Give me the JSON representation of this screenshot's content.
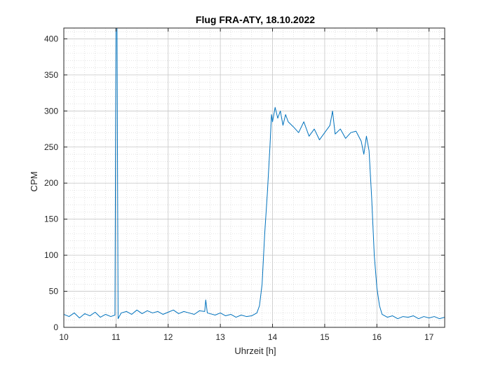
{
  "chart_data": {
    "type": "line",
    "title": "Flug FRA-ATY, 18.10.2022",
    "xlabel": "Uhrzeit [h]",
    "ylabel": "CPM",
    "xlim": [
      10,
      17.3
    ],
    "ylim": [
      0,
      415
    ],
    "xticks": [
      10,
      11,
      12,
      13,
      14,
      15,
      16,
      17
    ],
    "yticks": [
      0,
      50,
      100,
      150,
      200,
      250,
      300,
      350,
      400
    ],
    "grid": "major and minor",
    "series": [
      {
        "color": "#0072BD",
        "points": [
          [
            10.0,
            18
          ],
          [
            10.1,
            15
          ],
          [
            10.2,
            20
          ],
          [
            10.3,
            13
          ],
          [
            10.4,
            19
          ],
          [
            10.5,
            16
          ],
          [
            10.6,
            21
          ],
          [
            10.7,
            14
          ],
          [
            10.8,
            18
          ],
          [
            10.9,
            15
          ],
          [
            10.98,
            17
          ],
          [
            11.0,
            420
          ],
          [
            11.02,
            420
          ],
          [
            11.04,
            12
          ],
          [
            11.1,
            20
          ],
          [
            11.2,
            22
          ],
          [
            11.3,
            18
          ],
          [
            11.4,
            24
          ],
          [
            11.5,
            19
          ],
          [
            11.6,
            23
          ],
          [
            11.7,
            20
          ],
          [
            11.8,
            22
          ],
          [
            11.9,
            18
          ],
          [
            12.0,
            21
          ],
          [
            12.1,
            24
          ],
          [
            12.2,
            19
          ],
          [
            12.3,
            22
          ],
          [
            12.4,
            20
          ],
          [
            12.5,
            18
          ],
          [
            12.6,
            23
          ],
          [
            12.7,
            22
          ],
          [
            12.72,
            38
          ],
          [
            12.75,
            20
          ],
          [
            12.8,
            19
          ],
          [
            12.9,
            17
          ],
          [
            13.0,
            20
          ],
          [
            13.1,
            16
          ],
          [
            13.2,
            18
          ],
          [
            13.3,
            14
          ],
          [
            13.4,
            17
          ],
          [
            13.5,
            15
          ],
          [
            13.6,
            16
          ],
          [
            13.7,
            20
          ],
          [
            13.75,
            30
          ],
          [
            13.8,
            60
          ],
          [
            13.85,
            130
          ],
          [
            13.9,
            185
          ],
          [
            13.95,
            250
          ],
          [
            13.98,
            295
          ],
          [
            14.0,
            285
          ],
          [
            14.05,
            305
          ],
          [
            14.1,
            290
          ],
          [
            14.15,
            300
          ],
          [
            14.2,
            280
          ],
          [
            14.25,
            295
          ],
          [
            14.3,
            285
          ],
          [
            14.4,
            278
          ],
          [
            14.5,
            270
          ],
          [
            14.6,
            285
          ],
          [
            14.7,
            265
          ],
          [
            14.8,
            275
          ],
          [
            14.9,
            260
          ],
          [
            15.0,
            270
          ],
          [
            15.1,
            280
          ],
          [
            15.15,
            300
          ],
          [
            15.2,
            268
          ],
          [
            15.3,
            275
          ],
          [
            15.4,
            262
          ],
          [
            15.5,
            270
          ],
          [
            15.6,
            272
          ],
          [
            15.7,
            258
          ],
          [
            15.75,
            240
          ],
          [
            15.8,
            265
          ],
          [
            15.85,
            245
          ],
          [
            15.9,
            180
          ],
          [
            15.95,
            100
          ],
          [
            16.0,
            55
          ],
          [
            16.05,
            30
          ],
          [
            16.1,
            18
          ],
          [
            16.2,
            14
          ],
          [
            16.3,
            16
          ],
          [
            16.4,
            12
          ],
          [
            16.5,
            15
          ],
          [
            16.6,
            14
          ],
          [
            16.7,
            16
          ],
          [
            16.8,
            12
          ],
          [
            16.9,
            15
          ],
          [
            17.0,
            13
          ],
          [
            17.1,
            15
          ],
          [
            17.2,
            12
          ],
          [
            17.3,
            14
          ]
        ]
      }
    ]
  }
}
